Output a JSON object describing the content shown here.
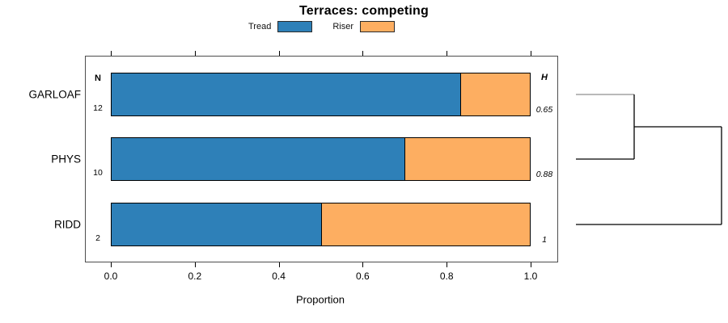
{
  "title": "Terraces: competing",
  "legend": {
    "items": [
      {
        "label": "Tread",
        "color": "#2E80B8"
      },
      {
        "label": "Riser",
        "color": "#FDAE61"
      }
    ]
  },
  "chart_data": {
    "type": "bar",
    "orientation": "horizontal",
    "stacked": true,
    "title": "Terraces: competing",
    "xlabel": "Proportion",
    "xlim": [
      0,
      1
    ],
    "grid": false,
    "legend_position": "top-center",
    "x_ticks": [
      {
        "value": 0.0,
        "label": "0.0"
      },
      {
        "value": 0.2,
        "label": "0.2"
      },
      {
        "value": 0.4,
        "label": "0.4"
      },
      {
        "value": 0.6,
        "label": "0.6"
      },
      {
        "value": 0.8,
        "label": "0.8"
      },
      {
        "value": 1.0,
        "label": "1.0"
      }
    ],
    "categories": [
      "GARLOAF",
      "PHYS",
      "RIDD"
    ],
    "series": [
      {
        "name": "Tread",
        "color": "#2E80B8",
        "values": [
          0.8333,
          0.7,
          0.5
        ]
      },
      {
        "name": "Riser",
        "color": "#FDAE61",
        "values": [
          0.1667,
          0.3,
          0.5
        ]
      }
    ],
    "n_column": {
      "header": "N",
      "values": [
        "12",
        "10",
        "2"
      ]
    },
    "h_column": {
      "header": "H",
      "values": [
        "0.65",
        "0.88",
        "1"
      ]
    },
    "dendrogram": {
      "leaf_order": [
        "GARLOAF",
        "PHYS",
        "RIDD"
      ],
      "leaf_line_colors": [
        "#8F8F8F",
        "#000000",
        "#000000"
      ],
      "line_color": "#000000",
      "joins": [
        {
          "members": [
            0,
            1
          ],
          "x_frac": 0.4
        },
        {
          "members": [
            "join0",
            2
          ],
          "x_frac": 1.0
        }
      ]
    }
  }
}
